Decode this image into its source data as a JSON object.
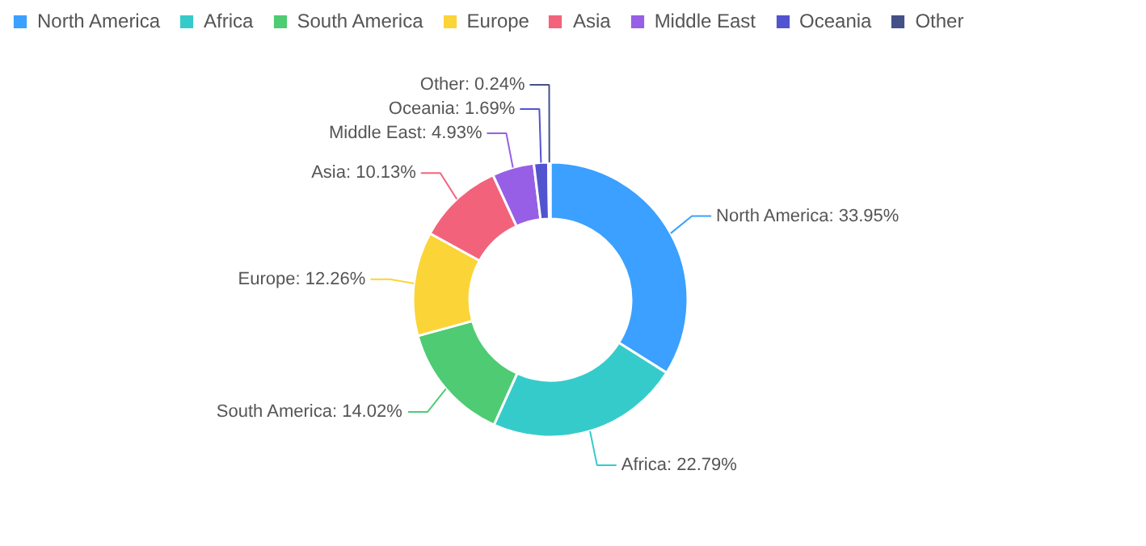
{
  "chart_data": {
    "type": "donut",
    "categories": [
      "North America",
      "Africa",
      "South America",
      "Europe",
      "Asia",
      "Middle East",
      "Oceania",
      "Other"
    ],
    "values": [
      33.95,
      22.79,
      14.02,
      12.26,
      10.13,
      4.93,
      1.69,
      0.24
    ],
    "colors": [
      "#3ba0ff",
      "#36cbcb",
      "#4ecb73",
      "#fbd437",
      "#f2637b",
      "#975fe5",
      "#5254cf",
      "#435188"
    ],
    "value_labels": [
      "North America: 33.95%",
      "Africa: 22.79%",
      "South America: 14.02%",
      "Europe: 12.26%",
      "Asia: 10.13%",
      "Middle East: 4.93%",
      "Oceania: 1.69%",
      "Other: 0.24%"
    ],
    "legend": "top left"
  }
}
